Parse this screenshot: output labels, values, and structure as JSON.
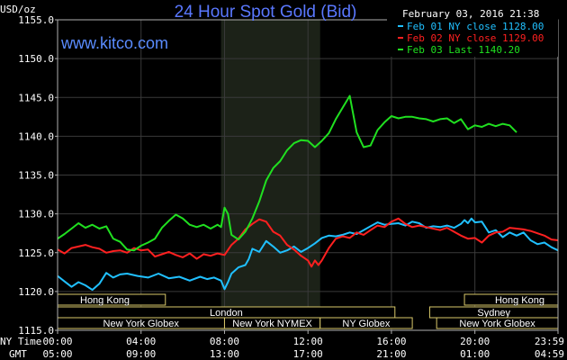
{
  "chart_data": {
    "type": "line",
    "title": "24 Hour Spot Gold (Bid)",
    "site": "www.kitco.com",
    "timestamp": "February 03, 2016 21:38",
    "ylabel": "USD/oz",
    "ylim": [
      1115,
      1155
    ],
    "yticks": [
      "1155.0",
      "1150.0",
      "1145.0",
      "1140.0",
      "1135.0",
      "1130.0",
      "1125.0",
      "1120.0",
      "1115.0"
    ],
    "xlim": [
      0,
      1439
    ],
    "xtick_minutes": [
      0,
      240,
      480,
      720,
      960,
      1200,
      1439
    ],
    "ny_time_label": "NY Time",
    "gmt_label": "GMT",
    "ny_ticks": [
      "00:00",
      "04:00",
      "08:00",
      "12:00",
      "16:00",
      "20:00",
      "23:59"
    ],
    "gmt_ticks": [
      "05:00",
      "09:00",
      "13:00",
      "17:00",
      "21:00",
      "01:00",
      "04:59"
    ],
    "shaded_range_minutes": [
      470,
      755
    ],
    "grid": true,
    "legend_position": "top-right",
    "series": [
      {
        "name": "Feb 01 NY close 1128.00",
        "color": "#20c0ff",
        "points": [
          [
            0,
            1122
          ],
          [
            20,
            1121.3
          ],
          [
            40,
            1120.6
          ],
          [
            60,
            1121.2
          ],
          [
            80,
            1120.8
          ],
          [
            100,
            1120.2
          ],
          [
            120,
            1121
          ],
          [
            140,
            1122.4
          ],
          [
            160,
            1121.8
          ],
          [
            180,
            1122.2
          ],
          [
            200,
            1122.3
          ],
          [
            230,
            1122
          ],
          [
            260,
            1121.8
          ],
          [
            290,
            1122.3
          ],
          [
            320,
            1121.7
          ],
          [
            350,
            1121.9
          ],
          [
            380,
            1121.4
          ],
          [
            410,
            1121.9
          ],
          [
            430,
            1121.6
          ],
          [
            450,
            1121.8
          ],
          [
            470,
            1121.4
          ],
          [
            480,
            1120.3
          ],
          [
            490,
            1121.2
          ],
          [
            500,
            1122.3
          ],
          [
            520,
            1123.1
          ],
          [
            540,
            1123.4
          ],
          [
            550,
            1124.2
          ],
          [
            560,
            1125.5
          ],
          [
            580,
            1125.1
          ],
          [
            600,
            1126.5
          ],
          [
            620,
            1125.8
          ],
          [
            640,
            1125
          ],
          [
            660,
            1125.3
          ],
          [
            680,
            1125.8
          ],
          [
            700,
            1125.1
          ],
          [
            720,
            1125.6
          ],
          [
            740,
            1126.2
          ],
          [
            760,
            1126.9
          ],
          [
            780,
            1127.2
          ],
          [
            800,
            1127.1
          ],
          [
            820,
            1127.3
          ],
          [
            840,
            1127.6
          ],
          [
            860,
            1127.4
          ],
          [
            880,
            1127.9
          ],
          [
            900,
            1128.4
          ],
          [
            920,
            1128.9
          ],
          [
            940,
            1128.6
          ],
          [
            960,
            1128.7
          ],
          [
            980,
            1128.8
          ],
          [
            1000,
            1128.5
          ],
          [
            1020,
            1129
          ],
          [
            1040,
            1128.8
          ],
          [
            1060,
            1128.2
          ],
          [
            1080,
            1128.4
          ],
          [
            1100,
            1128.3
          ],
          [
            1120,
            1128.5
          ],
          [
            1140,
            1128.2
          ],
          [
            1160,
            1128.7
          ],
          [
            1170,
            1129.2
          ],
          [
            1180,
            1128.8
          ],
          [
            1190,
            1129.4
          ],
          [
            1200,
            1128.9
          ],
          [
            1220,
            1129
          ],
          [
            1240,
            1127.6
          ],
          [
            1260,
            1127.9
          ],
          [
            1280,
            1127
          ],
          [
            1300,
            1127.6
          ],
          [
            1320,
            1127.2
          ],
          [
            1340,
            1127.6
          ],
          [
            1360,
            1126.6
          ],
          [
            1380,
            1126.1
          ],
          [
            1400,
            1126.3
          ],
          [
            1420,
            1125.7
          ],
          [
            1439,
            1125.3
          ]
        ]
      },
      {
        "name": "Feb 02 NY close 1129.00",
        "color": "#ff2020",
        "points": [
          [
            0,
            1125.4
          ],
          [
            20,
            1124.9
          ],
          [
            40,
            1125.6
          ],
          [
            60,
            1125.8
          ],
          [
            80,
            1126
          ],
          [
            100,
            1125.7
          ],
          [
            120,
            1125.5
          ],
          [
            140,
            1125
          ],
          [
            160,
            1125.2
          ],
          [
            180,
            1125.3
          ],
          [
            200,
            1125
          ],
          [
            220,
            1125.6
          ],
          [
            240,
            1125.3
          ],
          [
            260,
            1125.4
          ],
          [
            280,
            1124.5
          ],
          [
            300,
            1124.8
          ],
          [
            320,
            1125.1
          ],
          [
            340,
            1124.7
          ],
          [
            360,
            1124.4
          ],
          [
            380,
            1124.9
          ],
          [
            400,
            1124.2
          ],
          [
            420,
            1124.8
          ],
          [
            440,
            1124.6
          ],
          [
            460,
            1124.9
          ],
          [
            480,
            1124.7
          ],
          [
            500,
            1126
          ],
          [
            520,
            1126.8
          ],
          [
            540,
            1128
          ],
          [
            560,
            1128.7
          ],
          [
            580,
            1129.3
          ],
          [
            600,
            1129
          ],
          [
            620,
            1127.7
          ],
          [
            640,
            1127.2
          ],
          [
            660,
            1126
          ],
          [
            680,
            1125.4
          ],
          [
            700,
            1124.6
          ],
          [
            720,
            1124
          ],
          [
            730,
            1123.2
          ],
          [
            740,
            1124
          ],
          [
            750,
            1123.4
          ],
          [
            760,
            1124
          ],
          [
            780,
            1125.6
          ],
          [
            800,
            1126.8
          ],
          [
            820,
            1127.1
          ],
          [
            840,
            1126.9
          ],
          [
            860,
            1127.6
          ],
          [
            880,
            1127.3
          ],
          [
            900,
            1127.9
          ],
          [
            920,
            1128.5
          ],
          [
            940,
            1128.3
          ],
          [
            960,
            1129
          ],
          [
            980,
            1129.4
          ],
          [
            1000,
            1128.7
          ],
          [
            1020,
            1128.3
          ],
          [
            1040,
            1128.5
          ],
          [
            1060,
            1128.3
          ],
          [
            1080,
            1128.1
          ],
          [
            1100,
            1127.9
          ],
          [
            1120,
            1128.2
          ],
          [
            1140,
            1127.7
          ],
          [
            1160,
            1127.2
          ],
          [
            1180,
            1126.8
          ],
          [
            1200,
            1126.9
          ],
          [
            1220,
            1126.3
          ],
          [
            1240,
            1127.2
          ],
          [
            1260,
            1127.6
          ],
          [
            1280,
            1127.7
          ],
          [
            1300,
            1128.2
          ],
          [
            1320,
            1128.1
          ],
          [
            1340,
            1128
          ],
          [
            1360,
            1127.8
          ],
          [
            1380,
            1127.5
          ],
          [
            1400,
            1127.2
          ],
          [
            1420,
            1126.7
          ],
          [
            1439,
            1126.6
          ]
        ]
      },
      {
        "name": "Feb 03 Last 1140.20",
        "color": "#20e020",
        "points": [
          [
            0,
            1126.8
          ],
          [
            20,
            1127.4
          ],
          [
            40,
            1128.1
          ],
          [
            60,
            1128.8
          ],
          [
            80,
            1128.2
          ],
          [
            100,
            1128.6
          ],
          [
            120,
            1128.1
          ],
          [
            140,
            1128.4
          ],
          [
            160,
            1126.8
          ],
          [
            180,
            1126.4
          ],
          [
            200,
            1125.4
          ],
          [
            220,
            1125.3
          ],
          [
            240,
            1125.9
          ],
          [
            260,
            1126.3
          ],
          [
            280,
            1126.8
          ],
          [
            300,
            1128.2
          ],
          [
            320,
            1129.1
          ],
          [
            340,
            1129.9
          ],
          [
            360,
            1129.4
          ],
          [
            380,
            1128.6
          ],
          [
            400,
            1128.3
          ],
          [
            420,
            1128.6
          ],
          [
            440,
            1128.1
          ],
          [
            460,
            1128.6
          ],
          [
            470,
            1128.3
          ],
          [
            480,
            1130.8
          ],
          [
            490,
            1130
          ],
          [
            500,
            1127.3
          ],
          [
            520,
            1126.7
          ],
          [
            540,
            1127.7
          ],
          [
            560,
            1129.4
          ],
          [
            580,
            1131.6
          ],
          [
            600,
            1134.3
          ],
          [
            620,
            1135.9
          ],
          [
            640,
            1136.8
          ],
          [
            660,
            1138.2
          ],
          [
            680,
            1139.1
          ],
          [
            700,
            1139.5
          ],
          [
            720,
            1139.4
          ],
          [
            740,
            1138.6
          ],
          [
            760,
            1139.4
          ],
          [
            780,
            1140.4
          ],
          [
            800,
            1142.2
          ],
          [
            820,
            1143.7
          ],
          [
            840,
            1145.2
          ],
          [
            860,
            1140.5
          ],
          [
            880,
            1138.6
          ],
          [
            900,
            1138.8
          ],
          [
            920,
            1140.8
          ],
          [
            940,
            1141.8
          ],
          [
            960,
            1142.6
          ],
          [
            980,
            1142.3
          ],
          [
            1000,
            1142.5
          ],
          [
            1020,
            1142.5
          ],
          [
            1040,
            1142.3
          ],
          [
            1060,
            1142.2
          ],
          [
            1080,
            1141.9
          ],
          [
            1100,
            1142.2
          ],
          [
            1120,
            1142.3
          ],
          [
            1140,
            1141.7
          ],
          [
            1160,
            1142.2
          ],
          [
            1180,
            1140.9
          ],
          [
            1200,
            1141.4
          ],
          [
            1220,
            1141.2
          ],
          [
            1240,
            1141.6
          ],
          [
            1260,
            1141.3
          ],
          [
            1280,
            1141.6
          ],
          [
            1300,
            1141.4
          ],
          [
            1320,
            1140.5
          ]
        ]
      }
    ],
    "markets": [
      {
        "label": "Hong Kong",
        "start": 0,
        "end": 310,
        "row": 0
      },
      {
        "label": "Hong Kong",
        "start": 1170,
        "end": 1439,
        "row": 0
      },
      {
        "label": "London",
        "start": 0,
        "end": 970,
        "row": 1
      },
      {
        "label": "Sydney",
        "start": 1070,
        "end": 1439,
        "row": 1
      },
      {
        "label": "New York Globex",
        "start": 0,
        "end": 480,
        "row": 2
      },
      {
        "label": "New York NYMEX",
        "start": 480,
        "end": 755,
        "row": 2
      },
      {
        "label": "NY Globex",
        "start": 755,
        "end": 1020,
        "row": 2
      },
      {
        "label": "New York Globex",
        "start": 1090,
        "end": 1439,
        "row": 2
      }
    ]
  }
}
